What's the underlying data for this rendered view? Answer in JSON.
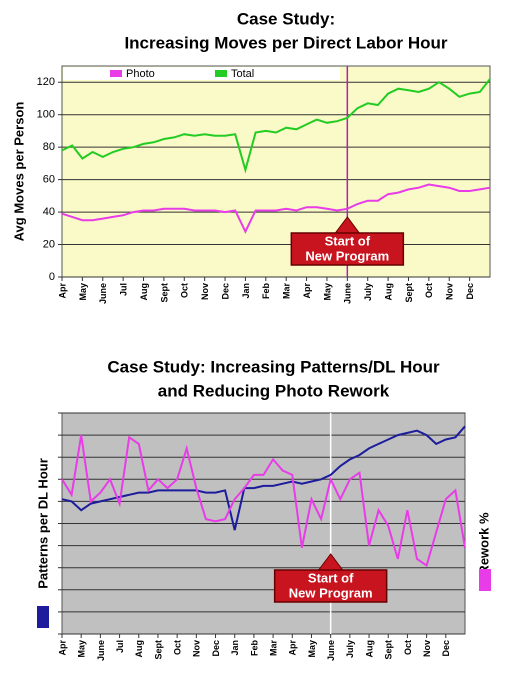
{
  "chart_data": [
    {
      "type": "line",
      "title": [
        "Case Study:",
        "Increasing Moves per Direct Labor Hour"
      ],
      "ylabel": "Avg Moves per Person",
      "background": "#fafac8",
      "grid": true,
      "legend": "top",
      "x": [
        0,
        0.5,
        1,
        1.5,
        2,
        2.5,
        3,
        3.5,
        4,
        4.5,
        5,
        5.5,
        6,
        6.5,
        7,
        7.5,
        8,
        8.5,
        9,
        9.5,
        10,
        10.5,
        11,
        11.5,
        12,
        12.5,
        13,
        13.5,
        14,
        14.5,
        15,
        15.5,
        16,
        16.5,
        17,
        17.5,
        18,
        18.5,
        19,
        19.5,
        20,
        20.5,
        21
      ],
      "xlim": [
        0,
        21
      ],
      "xticks": [
        {
          "value": 0,
          "label": "Apr"
        },
        {
          "value": 1,
          "label": "May"
        },
        {
          "value": 2,
          "label": "June"
        },
        {
          "value": 3,
          "label": "Jul"
        },
        {
          "value": 4,
          "label": "Aug"
        },
        {
          "value": 5,
          "label": "Sept"
        },
        {
          "value": 6,
          "label": "Oct"
        },
        {
          "value": 7,
          "label": "Nov"
        },
        {
          "value": 8,
          "label": "Dec"
        },
        {
          "value": 9,
          "label": "Jan"
        },
        {
          "value": 10,
          "label": "Feb"
        },
        {
          "value": 11,
          "label": "Mar"
        },
        {
          "value": 12,
          "label": "Apr"
        },
        {
          "value": 13,
          "label": "May"
        },
        {
          "value": 14,
          "label": "June"
        },
        {
          "value": 15,
          "label": "July"
        },
        {
          "value": 16,
          "label": "Aug"
        },
        {
          "value": 17,
          "label": "Sept"
        },
        {
          "value": 18,
          "label": "Oct"
        },
        {
          "value": 19,
          "label": "Nov"
        },
        {
          "value": 20,
          "label": "Dec"
        }
      ],
      "ylim": [
        0,
        130
      ],
      "yticks": [
        0,
        20,
        40,
        60,
        80,
        100,
        120
      ],
      "series": [
        {
          "name": "Photo",
          "color": "#e83ce8",
          "values": [
            39,
            37,
            35,
            35,
            36,
            37,
            38,
            40,
            41,
            41,
            42,
            42,
            42,
            41,
            41,
            41,
            40,
            41,
            28,
            41,
            41,
            41,
            42,
            41,
            43,
            43,
            42,
            41,
            42,
            45,
            47,
            47,
            51,
            52,
            54,
            55,
            57,
            56,
            55,
            53,
            53,
            54,
            55
          ]
        },
        {
          "name": "Total",
          "color": "#22cc22",
          "values": [
            78,
            81,
            73,
            77,
            74,
            77,
            79,
            80,
            82,
            83,
            85,
            86,
            88,
            87,
            88,
            87,
            87,
            88,
            66,
            89,
            90,
            89,
            92,
            91,
            94,
            97,
            95,
            96,
            98,
            104,
            107,
            106,
            113,
            116,
            115,
            114,
            116,
            120,
            116,
            111,
            113,
            114,
            122
          ]
        }
      ],
      "marker_line": {
        "x": 14,
        "color": "#b020b0"
      },
      "annotation": {
        "lines": [
          "Start of",
          "New Program"
        ],
        "x": 14
      }
    },
    {
      "type": "line",
      "title": [
        "Case Study: Increasing Patterns/DL Hour",
        "and Reducing Photo Rework"
      ],
      "background": "#c0c0c0",
      "grid": true,
      "x": [
        0,
        0.5,
        1,
        1.5,
        2,
        2.5,
        3,
        3.5,
        4,
        4.5,
        5,
        5.5,
        6,
        6.5,
        7,
        7.5,
        8,
        8.5,
        9,
        9.5,
        10,
        10.5,
        11,
        11.5,
        12,
        12.5,
        13,
        13.5,
        14,
        14.5,
        15,
        15.5,
        16,
        16.5,
        17,
        17.5,
        18,
        18.5,
        19,
        19.5,
        20,
        20.5,
        21
      ],
      "xlim": [
        0,
        21
      ],
      "xticks": [
        {
          "value": 0,
          "label": "Apr"
        },
        {
          "value": 1,
          "label": "May"
        },
        {
          "value": 2,
          "label": "June"
        },
        {
          "value": 3,
          "label": "Jul"
        },
        {
          "value": 4,
          "label": "Aug"
        },
        {
          "value": 5,
          "label": "Sept"
        },
        {
          "value": 6,
          "label": "Oct"
        },
        {
          "value": 7,
          "label": "Nov"
        },
        {
          "value": 8,
          "label": "Dec"
        },
        {
          "value": 9,
          "label": "Jan"
        },
        {
          "value": 10,
          "label": "Feb"
        },
        {
          "value": 11,
          "label": "Mar"
        },
        {
          "value": 12,
          "label": "Apr"
        },
        {
          "value": 13,
          "label": "May"
        },
        {
          "value": 14,
          "label": "June"
        },
        {
          "value": 15,
          "label": "July"
        },
        {
          "value": 16,
          "label": "Aug"
        },
        {
          "value": 17,
          "label": "Sept"
        },
        {
          "value": 18,
          "label": "Oct"
        },
        {
          "value": 19,
          "label": "Nov"
        },
        {
          "value": 20,
          "label": "Dec"
        }
      ],
      "ylim": [
        0,
        10
      ],
      "yticks": [
        0,
        1,
        2,
        3,
        4,
        5,
        6,
        7,
        8,
        9,
        10
      ],
      "series": [
        {
          "name": "Patterns per DL Hour",
          "color": "#1c1c9c",
          "values": [
            6.1,
            6.0,
            5.6,
            5.9,
            6.0,
            6.1,
            6.2,
            6.3,
            6.4,
            6.4,
            6.5,
            6.5,
            6.5,
            6.5,
            6.5,
            6.4,
            6.4,
            6.5,
            4.7,
            6.6,
            6.6,
            6.7,
            6.7,
            6.8,
            6.9,
            6.8,
            6.9,
            7.0,
            7.2,
            7.6,
            7.9,
            8.1,
            8.4,
            8.6,
            8.8,
            9.0,
            9.1,
            9.2,
            9.0,
            8.6,
            8.8,
            8.9,
            9.4
          ]
        },
        {
          "name": "Rework %",
          "color": "#e83ce8",
          "values": [
            7.0,
            6.3,
            9.0,
            6.0,
            6.4,
            7.0,
            5.9,
            8.9,
            8.6,
            6.5,
            7.0,
            6.6,
            7.0,
            8.4,
            6.6,
            5.2,
            5.1,
            5.2,
            6.1,
            6.6,
            7.2,
            7.2,
            7.9,
            7.4,
            7.2,
            3.9,
            6.1,
            5.2,
            7.0,
            6.1,
            7.0,
            7.3,
            4.0,
            5.6,
            4.9,
            3.4,
            5.6,
            3.4,
            3.1,
            4.6,
            6.1,
            6.5,
            3.9
          ]
        }
      ],
      "marker_line": {
        "x": 14,
        "color": "#ffffff"
      },
      "annotation": {
        "lines": [
          "Start of",
          "New Program"
        ],
        "x": 14
      }
    }
  ]
}
